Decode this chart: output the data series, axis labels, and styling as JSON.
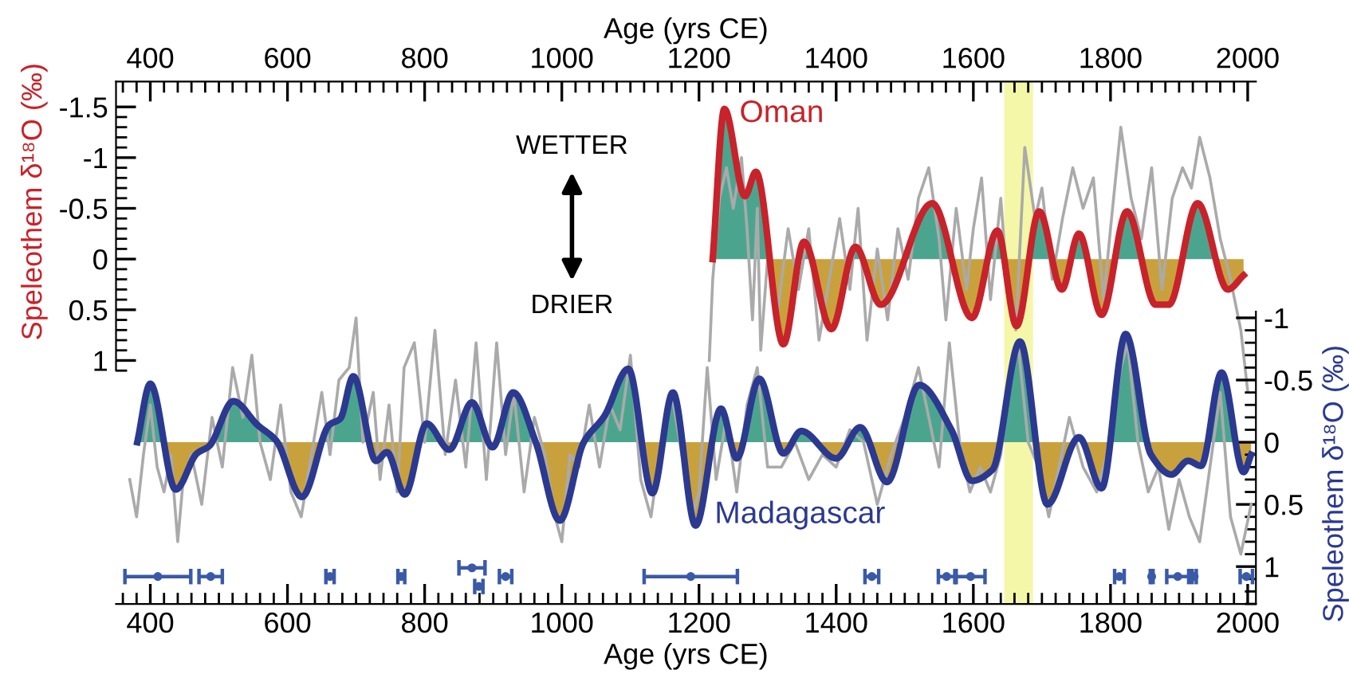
{
  "chart_data": {
    "type": "line",
    "xlabel": "Age (yrs CE)",
    "x2label": "Age (yrs CE)",
    "ylabel": "Speleothem δ¹⁸O (‰)",
    "y2label": "Speleothem δ¹⁸O (‰)",
    "xlim": [
      350,
      2012
    ],
    "xticks": [
      400,
      600,
      800,
      1000,
      1200,
      1400,
      1600,
      1800,
      2000
    ],
    "x2lim": [
      350,
      2012
    ],
    "x2ticks": [
      400,
      600,
      800,
      1000,
      1200,
      1400,
      1600,
      1800,
      2000
    ],
    "ylim": [
      3.4,
      -1.75
    ],
    "yticks": [
      -1.5,
      -1,
      -0.5,
      0,
      0.5,
      1
    ],
    "y2lim": [
      1.3,
      -2.9
    ],
    "y2ticks": [
      -1,
      -0.5,
      0,
      0.5,
      1
    ],
    "grid": false,
    "legend": false,
    "annotations": [
      "WETTER",
      "DRIER"
    ],
    "bands": [
      {
        "axis": "x",
        "from": 1645,
        "to": 1687,
        "color": "#f4f7a8"
      }
    ],
    "series": [
      {
        "color": "#aaaaaa",
        "x": [
          1215,
          1220,
          1230,
          1240,
          1250,
          1262,
          1270,
          1278,
          1285,
          1290,
          1300,
          1315,
          1330,
          1345,
          1360,
          1375,
          1390,
          1405,
          1420,
          1432,
          1445,
          1460,
          1475,
          1490,
          1505,
          1520,
          1535,
          1550,
          1560,
          1575,
          1590,
          1600,
          1612,
          1625,
          1640,
          1650,
          1662,
          1675,
          1690,
          1700,
          1715,
          1730,
          1745,
          1760,
          1775,
          1790,
          1800,
          1815,
          1830,
          1845,
          1860,
          1875,
          1890,
          1905,
          1918,
          1930,
          1945,
          1960,
          1975,
          1990,
          2000
        ],
        "values": [
          1.0,
          0.2,
          -0.6,
          -0.9,
          -0.5,
          -1.0,
          -0.3,
          0.6,
          -0.5,
          0.9,
          0.0,
          0.5,
          -0.3,
          0.3,
          -0.3,
          0.8,
          0.2,
          -0.4,
          0.3,
          -0.5,
          0.8,
          -0.1,
          0.6,
          -0.3,
          0.2,
          -0.6,
          -0.9,
          -0.2,
          0.6,
          -0.5,
          0.3,
          -0.3,
          -0.8,
          0.4,
          -0.6,
          0.3,
          0.7,
          -1.1,
          -0.4,
          -0.7,
          0.2,
          -0.4,
          -0.9,
          -0.5,
          -0.8,
          0.4,
          -0.3,
          -1.3,
          -0.6,
          -0.2,
          -0.9,
          0.3,
          -0.6,
          -0.9,
          -0.7,
          -1.2,
          -0.8,
          -0.2,
          0.2,
          0.7,
          1.3
        ]
      },
      {
        "name": "Oman",
        "color": "#c8222a",
        "x": [
          1220,
          1237,
          1267,
          1283,
          1323,
          1353,
          1393,
          1428,
          1465,
          1540,
          1598,
          1635,
          1663,
          1696,
          1729,
          1754,
          1787,
          1824,
          1866,
          1885,
          1927,
          1971,
          1994
        ],
        "values": [
          0,
          -1.48,
          -0.62,
          -0.86,
          0.84,
          -0.17,
          0.69,
          -0.12,
          0.45,
          -0.55,
          0.58,
          -0.28,
          0.66,
          -0.47,
          0.3,
          -0.25,
          0.55,
          -0.47,
          0.45,
          0.45,
          -0.55,
          0.3,
          0.16
        ]
      },
      {
        "axis": "y2",
        "color": "#aaaaaa",
        "x": [
          370,
          380,
          390,
          400,
          410,
          420,
          430,
          440,
          448,
          460,
          475,
          490,
          505,
          520,
          535,
          548,
          560,
          575,
          590,
          605,
          620,
          635,
          650,
          662,
          675,
          690,
          700,
          710,
          725,
          735,
          748,
          760,
          770,
          785,
          800,
          815,
          830,
          845,
          860,
          875,
          890,
          905,
          918,
          930,
          945,
          960,
          975,
          990,
          1000,
          1012,
          1025,
          1040,
          1055,
          1070,
          1085,
          1100,
          1115,
          1130,
          1145,
          1160,
          1175,
          1190,
          1200,
          1212,
          1225,
          1240,
          1255,
          1270,
          1285,
          1300,
          1320,
          1340,
          1360,
          1380,
          1400,
          1420,
          1440,
          1460,
          1480,
          1500,
          1520,
          1535,
          1550,
          1565,
          1580,
          1595,
          1610,
          1625,
          1640,
          1655,
          1665,
          1680,
          1695,
          1710,
          1725,
          1740,
          1760,
          1780,
          1800,
          1815,
          1825,
          1840,
          1855,
          1870,
          1885,
          1900,
          1915,
          1930,
          1945,
          1960,
          1975,
          1990,
          2005
        ],
        "values": [
          0.3,
          0.6,
          0.1,
          -0.3,
          0.2,
          0.4,
          0.1,
          0.8,
          0.3,
          0.1,
          0.5,
          -0.2,
          0.2,
          -0.6,
          -0.2,
          -0.7,
          0.0,
          0.3,
          -0.3,
          0.4,
          0.6,
          0.1,
          -0.4,
          0.1,
          -0.5,
          -0.6,
          -1.0,
          0.0,
          -0.4,
          0.3,
          -0.3,
          0.4,
          -0.6,
          -0.8,
          0.0,
          -0.9,
          0.1,
          -0.5,
          0.2,
          -0.8,
          0.3,
          -0.8,
          0.1,
          -0.4,
          0.4,
          -0.2,
          0.1,
          0.6,
          0.8,
          0.1,
          0.2,
          -0.3,
          0.2,
          -0.3,
          -0.1,
          -0.7,
          0.3,
          0.6,
          0.0,
          -0.4,
          0.1,
          0.6,
          0.4,
          -0.6,
          0.3,
          -0.2,
          0.4,
          -0.3,
          -0.6,
          0.2,
          0.2,
          0.0,
          0.3,
          0.1,
          0.2,
          -0.1,
          0.0,
          0.5,
          0.1,
          -0.2,
          -0.6,
          -0.2,
          0.2,
          -0.8,
          0.0,
          0.4,
          0.2,
          0.4,
          0.1,
          -0.6,
          -0.8,
          0.0,
          0.2,
          0.6,
          0.2,
          -0.2,
          0.2,
          0.4,
          0.0,
          -0.6,
          -0.8,
          0.0,
          0.4,
          0.2,
          0.7,
          0.3,
          0.6,
          0.8,
          0.2,
          -0.4,
          0.6,
          0.9,
          0.5
        ]
      },
      {
        "axis": "y2",
        "name": "Madagascar",
        "color": "#2b3990",
        "x": [
          381,
          400,
          437,
          468,
          486,
          521,
          556,
          584,
          621,
          661,
          677,
          696,
          729,
          745,
          771,
          803,
          836,
          869,
          899,
          929,
          962,
          997,
          1032,
          1062,
          1097,
          1132,
          1162,
          1195,
          1232,
          1255,
          1288,
          1323,
          1349,
          1400,
          1435,
          1474,
          1521,
          1568,
          1598,
          1628,
          1668,
          1708,
          1754,
          1787,
          1822,
          1859,
          1889,
          1913,
          1932,
          1962,
          1994,
          2005
        ],
        "values": [
          0,
          -0.47,
          0.38,
          0.09,
          0.03,
          -0.33,
          -0.14,
          -0.01,
          0.44,
          -0.14,
          -0.19,
          -0.53,
          0.15,
          0.08,
          0.42,
          -0.15,
          0.06,
          -0.32,
          0.04,
          -0.4,
          0.0,
          0.63,
          0.0,
          -0.21,
          -0.59,
          0.41,
          -0.4,
          0.67,
          -0.27,
          0.13,
          -0.51,
          0.09,
          -0.09,
          0.13,
          -0.12,
          0.32,
          -0.46,
          -0.1,
          0.31,
          0.22,
          -0.81,
          0.5,
          -0.04,
          0.37,
          -0.87,
          0.1,
          0.26,
          0.15,
          0.19,
          -0.56,
          0.24,
          0.1
        ]
      },
      {
        "type": "scatter",
        "axis": "y2",
        "marker": "circle",
        "color": "#3a5aa8",
        "x": [
          411,
          488,
          662,
          766,
          869,
          879,
          918,
          1188,
          1452,
          1561,
          1596,
          1813,
          1860,
          1898,
          1922,
          1998
        ],
        "values": [
          1.08,
          1.08,
          1.08,
          1.08,
          1.01,
          1.16,
          1.08,
          1.08,
          1.08,
          1.08,
          1.08,
          1.08,
          1.08,
          1.08,
          1.08,
          1.08
        ],
        "xerrors": [
          48,
          17,
          6,
          5,
          19,
          6,
          9,
          68,
          10,
          12,
          21,
          7,
          2,
          16,
          3,
          9
        ]
      }
    ]
  }
}
